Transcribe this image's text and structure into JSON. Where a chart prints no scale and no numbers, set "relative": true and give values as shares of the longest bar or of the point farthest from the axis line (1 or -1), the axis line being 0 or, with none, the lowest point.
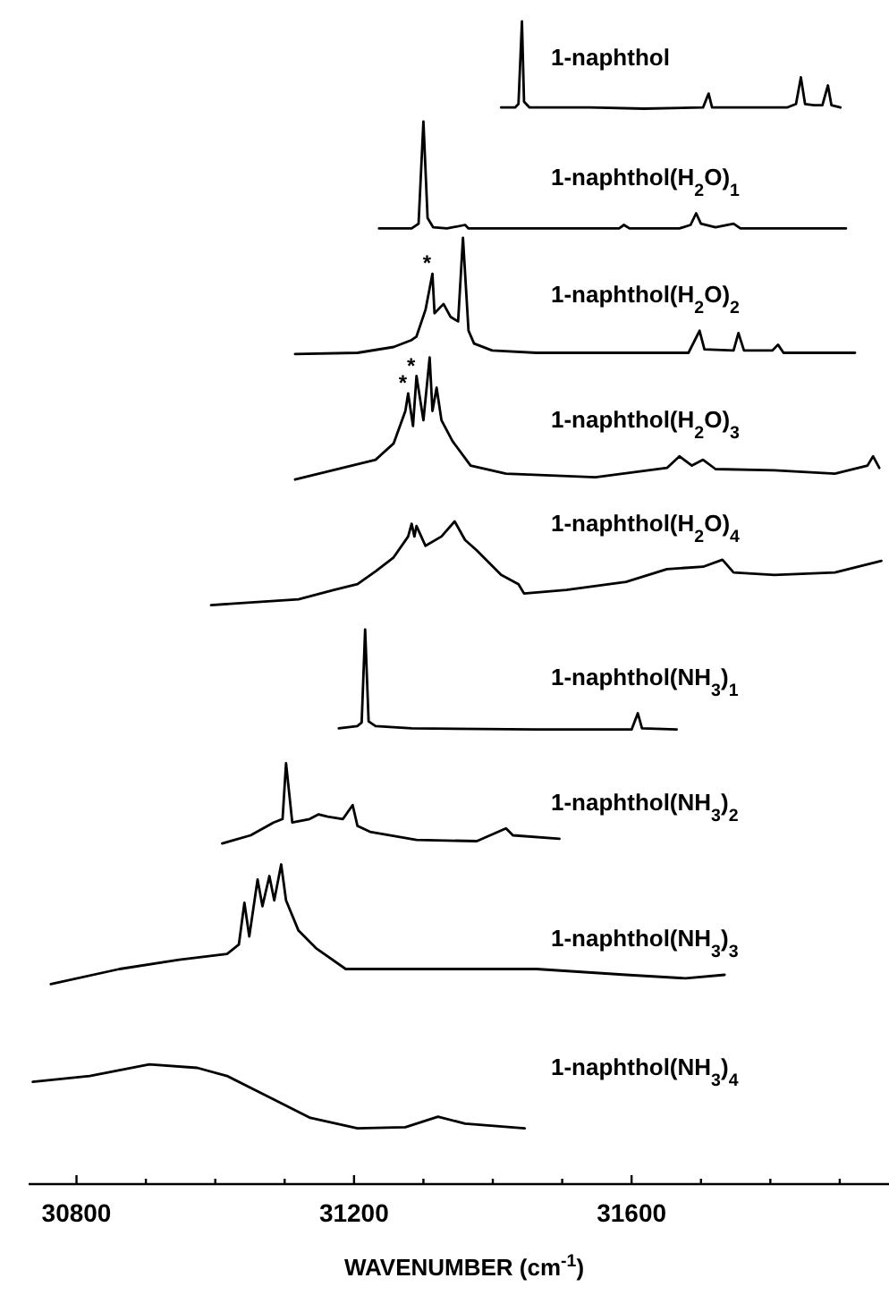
{
  "chart_data": {
    "type": "line",
    "relative": true,
    "xlabel": "WAVENUMBER (cm$^{-1}$)",
    "xlim": [
      30731,
      31971
    ],
    "xticks": [
      30800,
      {
        "value": 30900,
        "label": null
      },
      {
        "value": 31000,
        "label": null
      },
      {
        "value": 31100,
        "label": null
      },
      31200,
      {
        "value": 31300,
        "label": null
      },
      {
        "value": 31400,
        "label": null
      },
      {
        "value": 31500,
        "label": null
      },
      31600,
      {
        "value": 31700,
        "label": null
      },
      {
        "value": 31800,
        "label": null
      },
      {
        "value": 31900,
        "label": null
      }
    ],
    "annotations": [
      {
        "text": "*",
        "x": 31313,
        "y": 0.783
      },
      {
        "text": "*",
        "x": 31278,
        "y": 0.68
      },
      {
        "text": "*",
        "x": 31290,
        "y": 0.695
      }
    ],
    "series": [
      {
        "name": "1-naphthol",
        "color": "#000000",
        "x": [
          31412,
          31432,
          31437,
          31442,
          31445,
          31453,
          31540,
          31618,
          31703,
          31711,
          31716,
          31772,
          31824,
          31837,
          31844,
          31850,
          31863,
          31875,
          31883,
          31888,
          31901
        ],
        "values": [
          0.926,
          0.926,
          0.929,
          1.0,
          0.931,
          0.926,
          0.926,
          0.925,
          0.926,
          0.938,
          0.926,
          0.926,
          0.926,
          0.929,
          0.952,
          0.929,
          0.928,
          0.928,
          0.945,
          0.928,
          0.926
        ]
      },
      {
        "name": "1-naphthol(H$_{2}$O)$_{1}$",
        "color": "#000000",
        "x": [
          31236,
          31283,
          31293,
          31300,
          31306,
          31314,
          31334,
          31360,
          31365,
          31463,
          31582,
          31589,
          31597,
          31669,
          31685,
          31693,
          31700,
          31721,
          31747,
          31757,
          31824,
          31909
        ],
        "values": [
          0.822,
          0.822,
          0.826,
          0.914,
          0.831,
          0.823,
          0.822,
          0.825,
          0.822,
          0.822,
          0.822,
          0.825,
          0.822,
          0.822,
          0.825,
          0.835,
          0.826,
          0.823,
          0.826,
          0.822,
          0.822,
          0.822
        ]
      },
      {
        "name": "1-naphthol(H$_{2}$O)$_{2}$",
        "color": "#000000",
        "x": [
          31115,
          31205,
          31257,
          31283,
          31290,
          31303,
          31313,
          31316,
          31329,
          31339,
          31350,
          31357,
          31365,
          31373,
          31399,
          31463,
          31682,
          31698,
          31705,
          31747,
          31754,
          31762,
          31803,
          31811,
          31819,
          31922
        ],
        "values": [
          0.714,
          0.715,
          0.72,
          0.726,
          0.729,
          0.752,
          0.783,
          0.749,
          0.757,
          0.746,
          0.742,
          0.814,
          0.734,
          0.723,
          0.717,
          0.715,
          0.715,
          0.734,
          0.718,
          0.717,
          0.732,
          0.717,
          0.717,
          0.722,
          0.715,
          0.715
        ]
      },
      {
        "name": "1-naphthol(H$_{2}$O)$_{3}$",
        "color": "#000000",
        "x": [
          31115,
          31231,
          31257,
          31274,
          31278,
          31285,
          31290,
          31300,
          31309,
          31313,
          31319,
          31326,
          31342,
          31368,
          31419,
          31548,
          31651,
          31669,
          31687,
          31703,
          31721,
          31806,
          31893,
          31940,
          31948,
          31957
        ],
        "values": [
          0.606,
          0.623,
          0.637,
          0.665,
          0.68,
          0.652,
          0.695,
          0.657,
          0.711,
          0.665,
          0.685,
          0.657,
          0.639,
          0.618,
          0.611,
          0.608,
          0.616,
          0.626,
          0.618,
          0.623,
          0.615,
          0.614,
          0.611,
          0.618,
          0.626,
          0.616
        ]
      },
      {
        "name": "1-naphthol(H$_{2}$O)$_{4}$",
        "color": "#000000",
        "x": [
          30994,
          31120,
          31171,
          31205,
          31231,
          31257,
          31278,
          31283,
          31287,
          31290,
          31303,
          31326,
          31345,
          31360,
          31377,
          31412,
          31437,
          31445,
          31506,
          31592,
          31651,
          31703,
          31731,
          31747,
          31806,
          31893,
          31960
        ],
        "values": [
          0.498,
          0.503,
          0.511,
          0.516,
          0.527,
          0.539,
          0.557,
          0.568,
          0.557,
          0.566,
          0.549,
          0.557,
          0.57,
          0.554,
          0.545,
          0.524,
          0.516,
          0.508,
          0.511,
          0.518,
          0.529,
          0.531,
          0.537,
          0.526,
          0.524,
          0.526,
          0.536
        ]
      },
      {
        "name": "1-naphthol(NH$_{3}$)$_{1}$",
        "color": "#000000",
        "x": [
          31178,
          31205,
          31211,
          31216,
          31221,
          31231,
          31283,
          31463,
          31600,
          31609,
          31615,
          31665
        ],
        "values": [
          0.392,
          0.394,
          0.397,
          0.477,
          0.398,
          0.394,
          0.392,
          0.391,
          0.391,
          0.405,
          0.392,
          0.391
        ]
      },
      {
        "name": "1-naphthol(NH$_{3}$)$_{2}$",
        "color": "#000000",
        "x": [
          31010,
          31051,
          31084,
          31097,
          31102,
          31111,
          31136,
          31149,
          31162,
          31184,
          31198,
          31205,
          31223,
          31290,
          31377,
          31419,
          31429,
          31496
        ],
        "values": [
          0.293,
          0.3,
          0.311,
          0.314,
          0.362,
          0.311,
          0.314,
          0.318,
          0.316,
          0.314,
          0.326,
          0.308,
          0.303,
          0.296,
          0.295,
          0.306,
          0.3,
          0.297
        ]
      },
      {
        "name": "1-naphthol(NH$_{3}$)$_{3}$",
        "color": "#000000",
        "x": [
          30763,
          30862,
          30948,
          31017,
          31034,
          31042,
          31049,
          31061,
          31068,
          31078,
          31085,
          31095,
          31102,
          31120,
          31145,
          31188,
          31291,
          31463,
          31592,
          31678,
          31734
        ],
        "values": [
          0.172,
          0.185,
          0.193,
          0.198,
          0.206,
          0.242,
          0.213,
          0.262,
          0.239,
          0.265,
          0.244,
          0.275,
          0.244,
          0.218,
          0.203,
          0.185,
          0.185,
          0.185,
          0.18,
          0.177,
          0.18
        ]
      },
      {
        "name": "1-naphthol(NH$_{3}$)$_{4}$",
        "color": "#000000",
        "x": [
          30737,
          30819,
          30905,
          30974,
          31017,
          31077,
          31137,
          31205,
          31274,
          31321,
          31360,
          31446
        ],
        "values": [
          0.088,
          0.093,
          0.103,
          0.1,
          0.093,
          0.075,
          0.057,
          0.048,
          0.049,
          0.058,
          0.052,
          0.048
        ]
      }
    ]
  }
}
